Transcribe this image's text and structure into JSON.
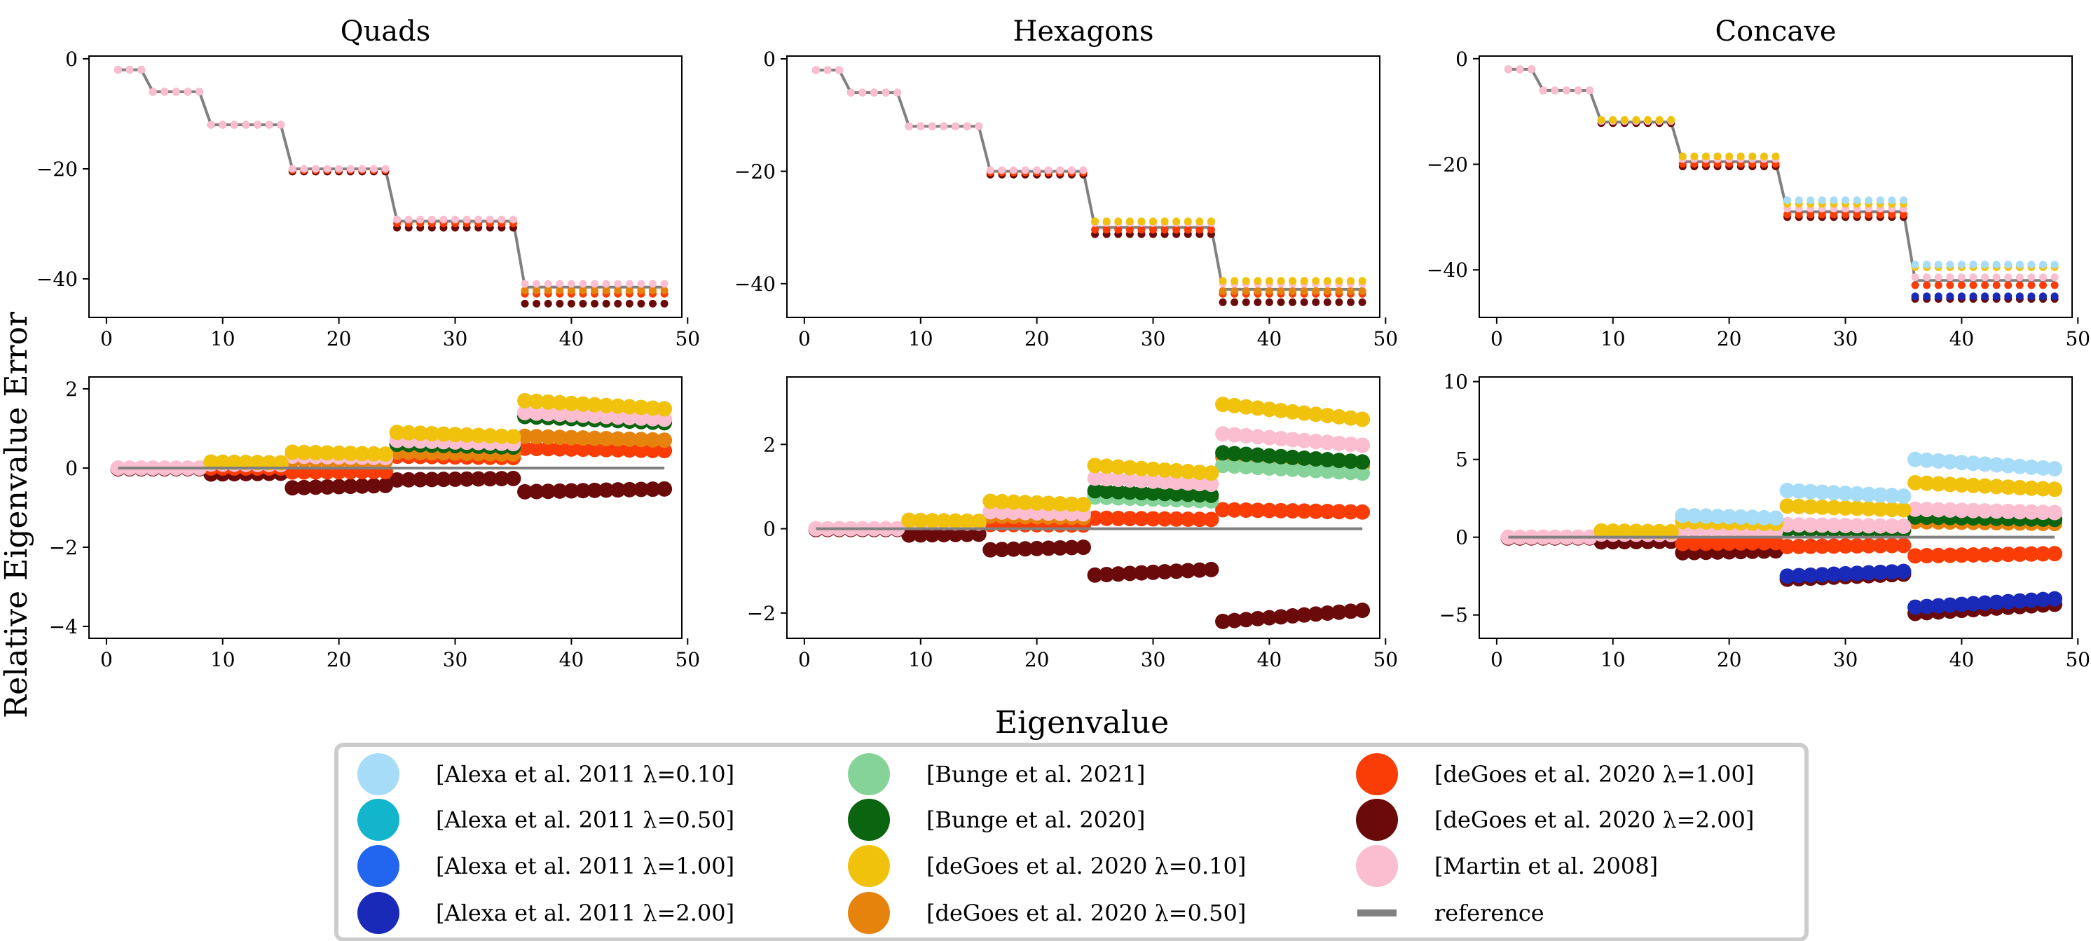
{
  "figure": {
    "xlabel": "Eigenvalue",
    "ylabel": "Relative Eigenvalue Error"
  },
  "series_meta": [
    {
      "key": "alexa010",
      "name": "[Alexa et al. 2011 λ=0.10]",
      "color": "#a6dcf7"
    },
    {
      "key": "alexa050",
      "name": "[Alexa et al. 2011 λ=0.50]",
      "color": "#12b5cb"
    },
    {
      "key": "alexa100",
      "name": "[Alexa et al. 2011 λ=1.00]",
      "color": "#2266f0"
    },
    {
      "key": "alexa200",
      "name": "[Alexa et al. 2011 λ=2.00]",
      "color": "#1a2ab8"
    },
    {
      "key": "bunge2021",
      "name": "[Bunge et al. 2021]",
      "color": "#86d39a"
    },
    {
      "key": "bunge2020",
      "name": "[Bunge et al. 2020]",
      "color": "#0b6410"
    },
    {
      "key": "degoes010",
      "name": "[deGoes et al. 2020 λ=0.10]",
      "color": "#f0c20c"
    },
    {
      "key": "degoes050",
      "name": "[deGoes et al. 2020 λ=0.50]",
      "color": "#e5830c"
    },
    {
      "key": "degoes100",
      "name": "[deGoes et al. 2020 λ=1.00]",
      "color": "#fa3c06"
    },
    {
      "key": "degoes200",
      "name": "[deGoes et al. 2020 λ=2.00]",
      "color": "#6b0a0a"
    },
    {
      "key": "martin2008",
      "name": "[Martin et al. 2008]",
      "color": "#fbbed0"
    },
    {
      "key": "reference",
      "name": "reference",
      "color": "#808080"
    }
  ],
  "chart_data": [
    {
      "type": "scatter",
      "title": "Quads",
      "row": "eigenvalues",
      "xlim": [
        -1.5,
        49.5
      ],
      "ylim": [
        -47,
        0.5
      ],
      "xticks": [
        0,
        10,
        20,
        30,
        40,
        50
      ],
      "yticks": [
        0,
        -20,
        -40
      ],
      "groups": [
        {
          "start": 1,
          "end": 3,
          "ref": -2,
          "errors": {
            "degoes200": 0,
            "martin2008": 0
          }
        },
        {
          "start": 4,
          "end": 8,
          "ref": -6,
          "errors": {
            "degoes200": 0,
            "martin2008": 0
          }
        },
        {
          "start": 9,
          "end": 15,
          "ref": -12,
          "errors": {
            "degoes200": 0,
            "martin2008": 0
          }
        },
        {
          "start": 16,
          "end": 24,
          "ref": -20,
          "errors": {
            "degoes200": -0.5,
            "degoes100": -0.2,
            "martin2008": 0
          }
        },
        {
          "start": 25,
          "end": 35,
          "ref": -29.5,
          "errors": {
            "degoes200": -1.2,
            "degoes100": -0.4,
            "martin2008": 0.3
          }
        },
        {
          "start": 36,
          "end": 48,
          "ref": -41.5,
          "errors": {
            "degoes200": -3.0,
            "degoes100": -1.2,
            "degoes050": -0.6,
            "martin2008": 0.6
          }
        }
      ]
    },
    {
      "type": "scatter",
      "title": "Hexagons",
      "row": "eigenvalues",
      "xlim": [
        -1.5,
        49.5
      ],
      "ylim": [
        -46,
        0.5
      ],
      "xticks": [
        0,
        10,
        20,
        30,
        40,
        50
      ],
      "yticks": [
        0,
        -20,
        -40
      ],
      "groups": [
        {
          "start": 1,
          "end": 3,
          "ref": -2,
          "errors": {
            "degoes200": 0,
            "martin2008": 0
          }
        },
        {
          "start": 4,
          "end": 8,
          "ref": -6,
          "errors": {
            "degoes200": 0,
            "martin2008": 0
          }
        },
        {
          "start": 9,
          "end": 15,
          "ref": -12,
          "errors": {
            "degoes200": 0,
            "martin2008": 0
          }
        },
        {
          "start": 16,
          "end": 24,
          "ref": -20,
          "errors": {
            "degoes200": -0.6,
            "degoes100": -0.2,
            "martin2008": 0.2
          }
        },
        {
          "start": 25,
          "end": 35,
          "ref": -30,
          "errors": {
            "degoes200": -1.2,
            "degoes100": -0.4,
            "degoes010": 1.1,
            "martin2008": 0.8
          }
        },
        {
          "start": 36,
          "end": 48,
          "ref": -41,
          "errors": {
            "degoes200": -2.3,
            "degoes100": -0.8,
            "degoes050": -0.3,
            "degoes010": 1.5,
            "martin2008": 1.0
          }
        }
      ]
    },
    {
      "type": "scatter",
      "title": "Concave",
      "row": "eigenvalues",
      "xlim": [
        -1.5,
        49.5
      ],
      "ylim": [
        -49,
        0.5
      ],
      "xticks": [
        0,
        10,
        20,
        30,
        40,
        50
      ],
      "yticks": [
        0,
        -20,
        -40
      ],
      "groups": [
        {
          "start": 1,
          "end": 3,
          "ref": -2,
          "errors": {
            "degoes200": 0,
            "martin2008": 0
          }
        },
        {
          "start": 4,
          "end": 8,
          "ref": -6,
          "errors": {
            "degoes200": 0,
            "martin2008": 0
          }
        },
        {
          "start": 9,
          "end": 15,
          "ref": -12,
          "errors": {
            "degoes010": 0.4,
            "degoes200": -0.2,
            "martin2008": 0.2
          }
        },
        {
          "start": 16,
          "end": 24,
          "ref": -19.5,
          "errors": {
            "degoes010": 1.0,
            "martin2008": 0.5,
            "degoes100": -0.4,
            "degoes200": -0.9
          }
        },
        {
          "start": 25,
          "end": 35,
          "ref": -29,
          "errors": {
            "alexa010": 2.2,
            "degoes010": 1.5,
            "martin2008": 0.6,
            "degoes100": -0.5,
            "degoes200": -1.0
          }
        },
        {
          "start": 36,
          "end": 48,
          "ref": -42,
          "errors": {
            "alexa010": 3.0,
            "degoes010": 2.5,
            "martin2008": 0.6,
            "degoes100": -0.9,
            "alexa200": -3.0,
            "degoes200": -3.5
          }
        }
      ]
    },
    {
      "type": "scatter",
      "title": "",
      "row": "relative-error",
      "xlim": [
        -1.5,
        49.5
      ],
      "ylim": [
        -4.3,
        2.3
      ],
      "xticks": [
        0,
        10,
        20,
        30,
        40,
        50
      ],
      "yticks": [
        2,
        0,
        -2,
        -4
      ],
      "groups": [
        {
          "start": 1,
          "end": 8,
          "values": {
            "martin2008": 0,
            "degoes200": -0.02
          }
        },
        {
          "start": 9,
          "end": 15,
          "values": {
            "degoes010": 0.15,
            "martin2008": 0.1,
            "degoes100": 0,
            "degoes200": -0.15
          }
        },
        {
          "start": 16,
          "end": 24,
          "values": {
            "degoes010": 0.4,
            "martin2008": 0.3,
            "degoes050": 0.2,
            "degoes100": -0.1,
            "degoes200": -0.5
          }
        },
        {
          "start": 25,
          "end": 35,
          "values": {
            "degoes010": 0.9,
            "martin2008": 0.7,
            "bunge2020": 0.6,
            "degoes050": 0.4,
            "degoes100": 0.3,
            "degoes200": -0.3
          }
        },
        {
          "start": 36,
          "end": 48,
          "values": {
            "degoes010": 1.7,
            "martin2008": 1.4,
            "bunge2020": 1.3,
            "degoes050": 0.8,
            "degoes100": 0.5,
            "degoes200": -0.6
          }
        }
      ]
    },
    {
      "type": "scatter",
      "title": "",
      "row": "relative-error",
      "xlim": [
        -1.5,
        49.5
      ],
      "ylim": [
        -2.6,
        3.6
      ],
      "xticks": [
        0,
        10,
        20,
        30,
        40,
        50
      ],
      "yticks": [
        2,
        0,
        -2
      ],
      "groups": [
        {
          "start": 1,
          "end": 8,
          "values": {
            "martin2008": 0,
            "degoes200": -0.02
          }
        },
        {
          "start": 9,
          "end": 15,
          "values": {
            "degoes010": 0.2,
            "martin2008": 0.15,
            "degoes200": -0.15
          }
        },
        {
          "start": 16,
          "end": 24,
          "values": {
            "degoes010": 0.65,
            "martin2008": 0.4,
            "degoes050": 0.3,
            "degoes100": 0.1,
            "degoes200": -0.5
          }
        },
        {
          "start": 25,
          "end": 35,
          "values": {
            "degoes010": 1.5,
            "martin2008": 1.2,
            "bunge2020": 0.9,
            "bunge2021": 0.75,
            "degoes050": 0.8,
            "degoes100": 0.25,
            "degoes200": -1.1
          }
        },
        {
          "start": 36,
          "end": 48,
          "values": {
            "degoes010": 2.95,
            "martin2008": 2.25,
            "bunge2020": 1.8,
            "degoes050": 1.7,
            "bunge2021": 1.5,
            "degoes100": 0.45,
            "degoes200": -2.2
          }
        }
      ]
    },
    {
      "type": "scatter",
      "title": "",
      "row": "relative-error",
      "xlim": [
        -1.5,
        49.5
      ],
      "ylim": [
        -6.5,
        10.3
      ],
      "xticks": [
        0,
        10,
        20,
        30,
        40,
        50
      ],
      "yticks": [
        10,
        5,
        0,
        -5
      ],
      "groups": [
        {
          "start": 1,
          "end": 8,
          "values": {
            "martin2008": 0,
            "degoes200": -0.05
          }
        },
        {
          "start": 9,
          "end": 15,
          "values": {
            "degoes010": 0.4,
            "martin2008": 0.2,
            "degoes200": -0.3
          }
        },
        {
          "start": 16,
          "end": 24,
          "values": {
            "alexa010": 1.4,
            "degoes010": 1.0,
            "martin2008": 0.5,
            "degoes100": -0.4,
            "degoes200": -1.0
          }
        },
        {
          "start": 25,
          "end": 35,
          "values": {
            "alexa010": 3.0,
            "degoes010": 2.0,
            "martin2008": 0.8,
            "bunge2020": 0.5,
            "degoes100": -0.6,
            "alexa200": -2.5,
            "degoes200": -2.7
          }
        },
        {
          "start": 36,
          "end": 48,
          "values": {
            "alexa010": 5.0,
            "degoes010": 3.5,
            "martin2008": 1.8,
            "bunge2020": 1.3,
            "degoes050": 1.0,
            "degoes100": -1.2,
            "alexa200": -4.5,
            "degoes200": -4.9
          }
        }
      ]
    }
  ]
}
